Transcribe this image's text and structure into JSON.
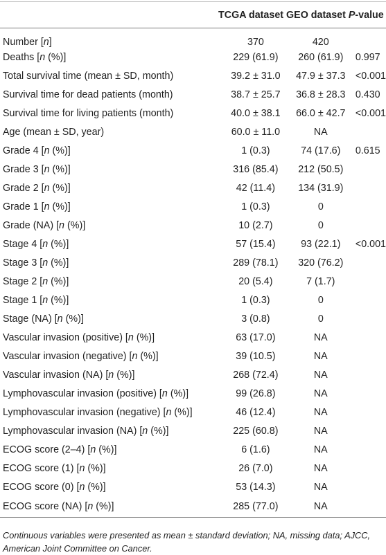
{
  "header": {
    "tcga": "TCGA dataset",
    "geo": "GEO dataset",
    "p": [
      "P",
      "-value"
    ]
  },
  "rows": [
    {
      "label": [
        "Number [",
        "n",
        "]"
      ],
      "tcga": "370",
      "geo": "420"
    },
    {
      "label": [
        "Deaths [",
        "n",
        " (%)]"
      ],
      "tcga": "229 (61.9)",
      "geo": "260 (61.9)",
      "p": "0.997"
    },
    {
      "label": [
        "Total survival time (mean ± SD, month)"
      ],
      "tcga": "39.2 ± 31.0",
      "geo": "47.9 ± 37.3",
      "p": "<0.001"
    },
    {
      "label": [
        "Survival time for dead patients (month)"
      ],
      "tcga": "38.7 ± 25.7",
      "geo": "36.8 ± 28.3",
      "p": "0.430"
    },
    {
      "label": [
        "Survival time for living patients (month)"
      ],
      "tcga": "40.0 ± 38.1",
      "geo": "66.0 ± 42.7",
      "p": "<0.001"
    },
    {
      "label": [
        "Age (mean ± SD, year)"
      ],
      "tcga": "60.0 ± 11.0",
      "geo": "NA"
    },
    {
      "label": [
        "Grade 4 [",
        "n",
        " (%)]"
      ],
      "tcga": "1 (0.3)",
      "geo": "74 (17.6)",
      "p": "0.615"
    },
    {
      "label": [
        "Grade 3 [",
        "n",
        " (%)]"
      ],
      "tcga": "316 (85.4)",
      "geo": "212 (50.5)"
    },
    {
      "label": [
        "Grade 2 [",
        "n",
        " (%)]"
      ],
      "tcga": "42 (11.4)",
      "geo": "134 (31.9)"
    },
    {
      "label": [
        "Grade 1 [",
        "n",
        " (%)]"
      ],
      "tcga": "1 (0.3)",
      "geo": "0"
    },
    {
      "label": [
        "Grade (NA) [",
        "n",
        " (%)]"
      ],
      "tcga": "10 (2.7)",
      "geo": "0"
    },
    {
      "label": [
        "Stage 4 [",
        "n",
        " (%)]"
      ],
      "tcga": "57 (15.4)",
      "geo": "93 (22.1)",
      "p": "<0.001"
    },
    {
      "label": [
        "Stage 3 [",
        "n",
        " (%)]"
      ],
      "tcga": "289 (78.1)",
      "geo": "320 (76.2)"
    },
    {
      "label": [
        "Stage 2 [",
        "n",
        " (%)]"
      ],
      "tcga": "20 (5.4)",
      "geo": "7 (1.7)"
    },
    {
      "label": [
        "Stage 1 [",
        "n",
        " (%)]"
      ],
      "tcga": "1 (0.3)",
      "geo": "0"
    },
    {
      "label": [
        "Stage (NA) [",
        "n",
        " (%)]"
      ],
      "tcga": "3 (0.8)",
      "geo": "0"
    },
    {
      "label": [
        "Vascular invasion (positive) [",
        "n",
        " (%)]"
      ],
      "tcga": "63 (17.0)",
      "geo": "NA"
    },
    {
      "label": [
        "Vascular invasion (negative) [",
        "n",
        " (%)]"
      ],
      "tcga": "39 (10.5)",
      "geo": "NA"
    },
    {
      "label": [
        "Vascular invasion (NA) [",
        "n",
        " (%)]"
      ],
      "tcga": "268 (72.4)",
      "geo": "NA"
    },
    {
      "label": [
        "Lymphovascular invasion (positive) [",
        "n",
        " (%)]"
      ],
      "tcga": "99 (26.8)",
      "geo": "NA"
    },
    {
      "label": [
        "Lymphovascular invasion (negative) [",
        "n",
        " (%)]"
      ],
      "tcga": "46 (12.4)",
      "geo": "NA"
    },
    {
      "label": [
        "Lymphovascular invasion (NA) [",
        "n",
        " (%)]"
      ],
      "tcga": "225 (60.8)",
      "geo": "NA"
    },
    {
      "label": [
        "ECOG score (2–4) [",
        "n",
        " (%)]"
      ],
      "tcga": "6 (1.6)",
      "geo": "NA"
    },
    {
      "label": [
        "ECOG score (1) [",
        "n",
        " (%)]"
      ],
      "tcga": "26 (7.0)",
      "geo": "NA"
    },
    {
      "label": [
        "ECOG score (0) [",
        "n",
        " (%)]"
      ],
      "tcga": "53 (14.3)",
      "geo": "NA"
    },
    {
      "label": [
        "ECOG score (NA) [",
        "n",
        " (%)]"
      ],
      "tcga": "285 (77.0)",
      "geo": "NA"
    }
  ],
  "footnote": "Continuous variables were presented as mean ± standard deviation; NA, missing data; AJCC, American Joint Committee on Cancer."
}
